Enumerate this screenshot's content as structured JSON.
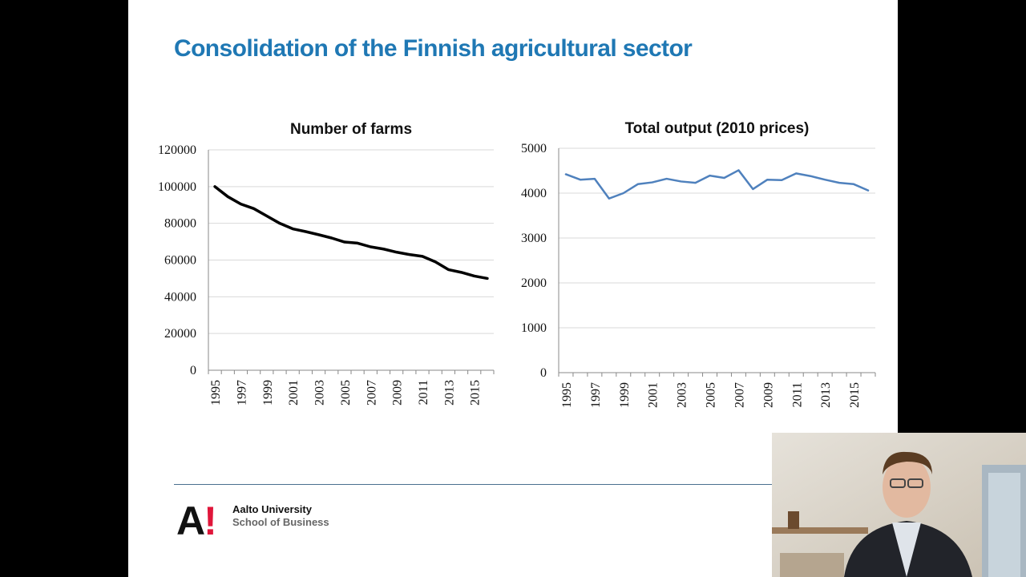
{
  "slide": {
    "title": "Consolidation of the Finnish agricultural sector"
  },
  "logo": {
    "mark_a": "A",
    "mark_excl": "!",
    "line1": "Aalto University",
    "line2": "School of Business",
    "accent_color": "#e0163a"
  },
  "title_color": "#1f78b4",
  "webcam": {
    "description_icon": "presenter-video-icon"
  },
  "chart_data": [
    {
      "type": "line",
      "title": "Number of farms",
      "xlabel": "",
      "ylabel": "",
      "x": [
        1995,
        1996,
        1997,
        1998,
        1999,
        2000,
        2001,
        2002,
        2003,
        2004,
        2005,
        2006,
        2007,
        2008,
        2009,
        2010,
        2011,
        2012,
        2013,
        2014,
        2015,
        2016
      ],
      "x_tick_labels": [
        "1995",
        "1997",
        "1999",
        "2001",
        "2003",
        "2005",
        "2007",
        "2009",
        "2011",
        "2013",
        "2015"
      ],
      "series": [
        {
          "values": [
            100000,
            94500,
            90500,
            88000,
            84000,
            80000,
            77000,
            75500,
            73800,
            72000,
            69800,
            69200,
            67200,
            66000,
            64300,
            63000,
            62000,
            59000,
            54800,
            53300,
            51300,
            50000
          ],
          "color": "#000000"
        }
      ],
      "ylim": [
        0,
        120000
      ],
      "y_ticks": [
        "0",
        "20000",
        "40000",
        "60000",
        "80000",
        "100000",
        "120000"
      ],
      "grid": true,
      "legend": "none"
    },
    {
      "type": "line",
      "title": "Total output (2010 prices)",
      "xlabel": "",
      "ylabel": "",
      "x": [
        1995,
        1996,
        1997,
        1998,
        1999,
        2000,
        2001,
        2002,
        2003,
        2004,
        2005,
        2006,
        2007,
        2008,
        2009,
        2010,
        2011,
        2012,
        2013,
        2014,
        2015,
        2016
      ],
      "x_tick_labels": [
        "1995",
        "1997",
        "1999",
        "2001",
        "2003",
        "2005",
        "2007",
        "2009",
        "2011",
        "2013",
        "2015"
      ],
      "series": [
        {
          "values": [
            4420,
            4300,
            4320,
            3880,
            4000,
            4200,
            4240,
            4320,
            4260,
            4230,
            4390,
            4340,
            4510,
            4090,
            4300,
            4290,
            4440,
            4380,
            4300,
            4230,
            4200,
            4060
          ],
          "color": "#4f81bd"
        }
      ],
      "ylim": [
        0,
        5000
      ],
      "y_ticks": [
        "0",
        "1000",
        "2000",
        "3000",
        "4000",
        "5000"
      ],
      "grid": true,
      "legend": "none"
    }
  ]
}
